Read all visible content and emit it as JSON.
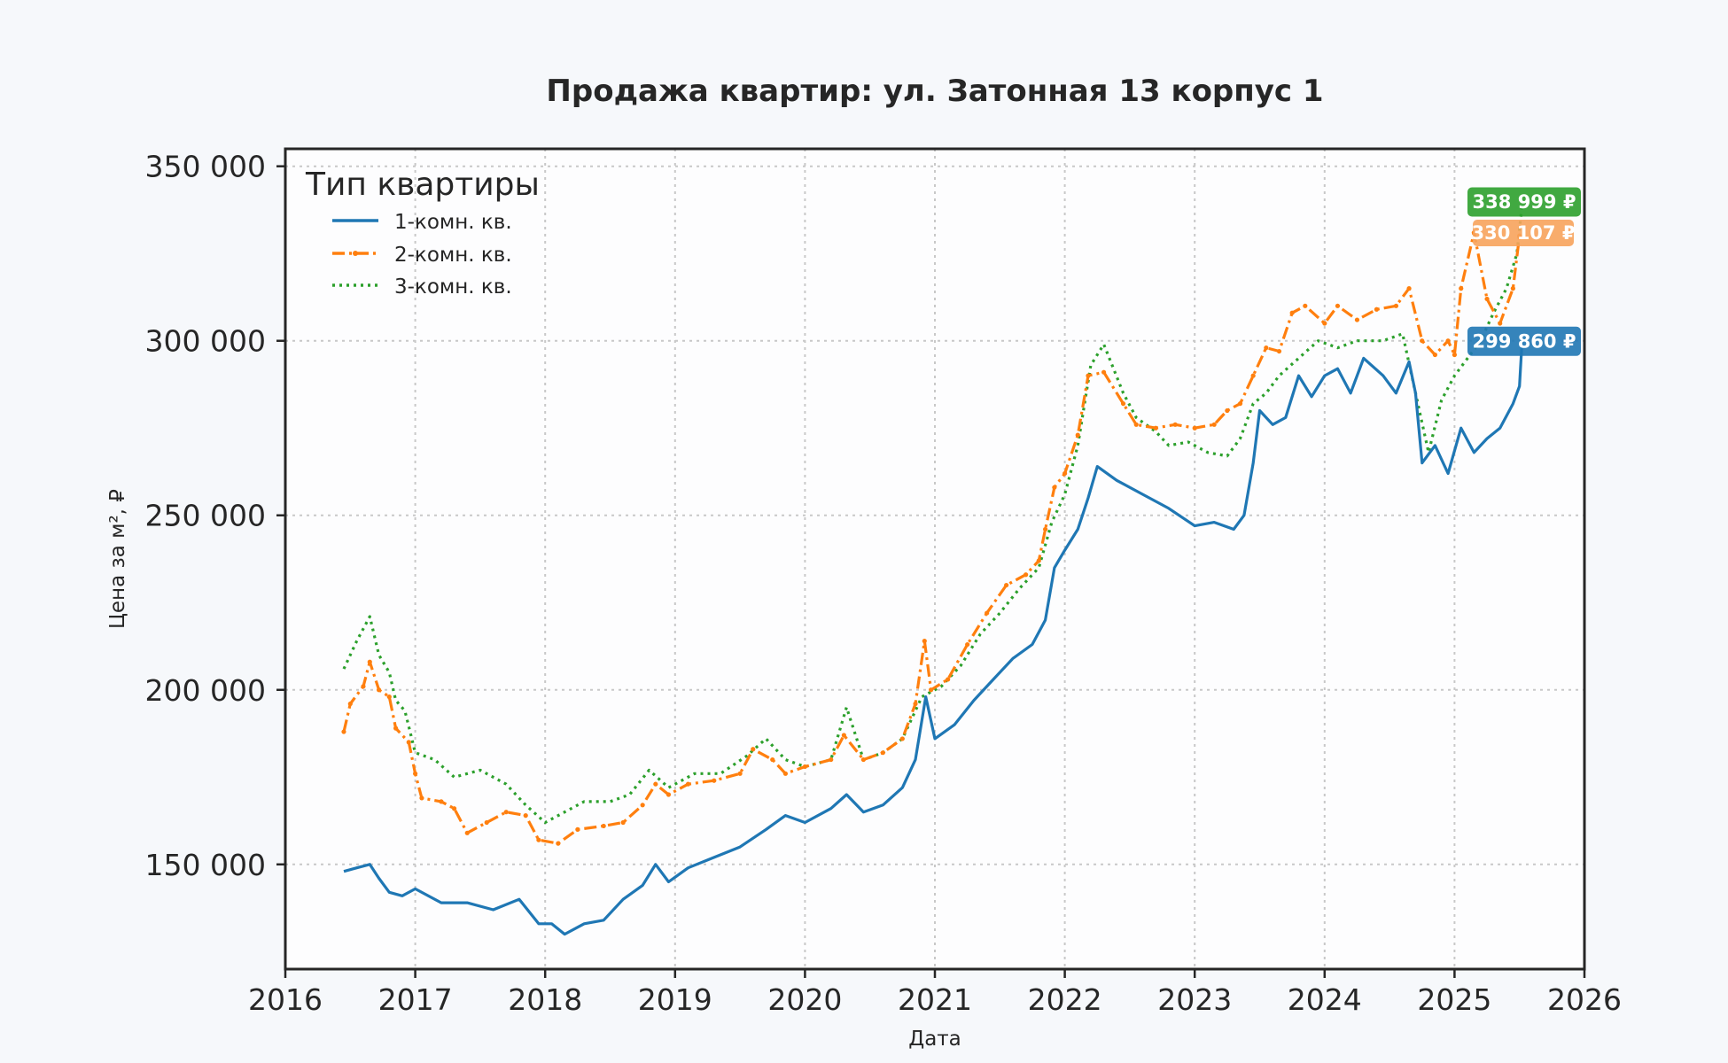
{
  "chart_data": {
    "type": "line",
    "title": "Продажа квартир: ул. Затонная 13 корпус 1",
    "xlabel": "Дата",
    "ylabel": "Цена за м², ₽",
    "xlim": [
      2016.0,
      2026.0
    ],
    "ylim": [
      120000,
      355000
    ],
    "x_ticks": [
      2016,
      2017,
      2018,
      2019,
      2020,
      2021,
      2022,
      2023,
      2024,
      2025,
      2026
    ],
    "x_tick_labels": [
      "2016",
      "2017",
      "2018",
      "2019",
      "2020",
      "2021",
      "2022",
      "2023",
      "2024",
      "2025",
      "2026"
    ],
    "y_ticks": [
      150000,
      200000,
      250000,
      300000,
      350000
    ],
    "y_tick_labels": [
      "150 000",
      "200 000",
      "250 000",
      "300 000",
      "350 000"
    ],
    "grid": true,
    "legend": {
      "title": "Тип квартиры",
      "placement": "top-left"
    },
    "series": [
      {
        "name": "1-комн. кв.",
        "color": "#1f77b4",
        "line_style": "solid",
        "end_label": "299 860 ₽",
        "points": [
          [
            2016.45,
            148000
          ],
          [
            2016.55,
            149000
          ],
          [
            2016.65,
            150000
          ],
          [
            2016.72,
            146000
          ],
          [
            2016.8,
            142000
          ],
          [
            2016.9,
            141000
          ],
          [
            2017.0,
            143000
          ],
          [
            2017.2,
            139000
          ],
          [
            2017.4,
            139000
          ],
          [
            2017.6,
            137000
          ],
          [
            2017.8,
            140000
          ],
          [
            2017.95,
            133000
          ],
          [
            2018.05,
            133000
          ],
          [
            2018.15,
            130000
          ],
          [
            2018.3,
            133000
          ],
          [
            2018.45,
            134000
          ],
          [
            2018.6,
            140000
          ],
          [
            2018.75,
            144000
          ],
          [
            2018.85,
            150000
          ],
          [
            2018.95,
            145000
          ],
          [
            2019.1,
            149000
          ],
          [
            2019.3,
            152000
          ],
          [
            2019.5,
            155000
          ],
          [
            2019.7,
            160000
          ],
          [
            2019.85,
            164000
          ],
          [
            2020.0,
            162000
          ],
          [
            2020.2,
            166000
          ],
          [
            2020.32,
            170000
          ],
          [
            2020.45,
            165000
          ],
          [
            2020.6,
            167000
          ],
          [
            2020.75,
            172000
          ],
          [
            2020.85,
            180000
          ],
          [
            2020.93,
            198000
          ],
          [
            2021.0,
            186000
          ],
          [
            2021.15,
            190000
          ],
          [
            2021.3,
            197000
          ],
          [
            2021.45,
            203000
          ],
          [
            2021.6,
            209000
          ],
          [
            2021.75,
            213000
          ],
          [
            2021.85,
            220000
          ],
          [
            2021.92,
            235000
          ],
          [
            2022.0,
            240000
          ],
          [
            2022.1,
            246000
          ],
          [
            2022.18,
            255000
          ],
          [
            2022.25,
            264000
          ],
          [
            2022.4,
            260000
          ],
          [
            2022.6,
            256000
          ],
          [
            2022.8,
            252000
          ],
          [
            2023.0,
            247000
          ],
          [
            2023.15,
            248000
          ],
          [
            2023.3,
            246000
          ],
          [
            2023.38,
            250000
          ],
          [
            2023.45,
            265000
          ],
          [
            2023.5,
            280000
          ],
          [
            2023.6,
            276000
          ],
          [
            2023.7,
            278000
          ],
          [
            2023.8,
            290000
          ],
          [
            2023.9,
            284000
          ],
          [
            2024.0,
            290000
          ],
          [
            2024.1,
            292000
          ],
          [
            2024.2,
            285000
          ],
          [
            2024.3,
            295000
          ],
          [
            2024.45,
            290000
          ],
          [
            2024.55,
            285000
          ],
          [
            2024.65,
            294000
          ],
          [
            2024.7,
            285000
          ],
          [
            2024.75,
            265000
          ],
          [
            2024.85,
            270000
          ],
          [
            2024.95,
            262000
          ],
          [
            2025.05,
            275000
          ],
          [
            2025.15,
            268000
          ],
          [
            2025.25,
            272000
          ],
          [
            2025.35,
            275000
          ],
          [
            2025.45,
            282000
          ],
          [
            2025.5,
            287000
          ],
          [
            2025.52,
            299860
          ]
        ]
      },
      {
        "name": "2-комн. кв.",
        "color": "#ff7f0e",
        "line_style": "dashdot",
        "end_label": "330 107 ₽",
        "points": [
          [
            2016.45,
            188000
          ],
          [
            2016.5,
            196000
          ],
          [
            2016.6,
            201000
          ],
          [
            2016.65,
            208000
          ],
          [
            2016.72,
            200000
          ],
          [
            2016.8,
            198000
          ],
          [
            2016.85,
            189000
          ],
          [
            2016.95,
            185000
          ],
          [
            2017.0,
            176000
          ],
          [
            2017.05,
            169000
          ],
          [
            2017.2,
            168000
          ],
          [
            2017.3,
            166000
          ],
          [
            2017.4,
            159000
          ],
          [
            2017.55,
            162000
          ],
          [
            2017.7,
            165000
          ],
          [
            2017.85,
            164000
          ],
          [
            2017.95,
            157000
          ],
          [
            2018.1,
            156000
          ],
          [
            2018.25,
            160000
          ],
          [
            2018.45,
            161000
          ],
          [
            2018.6,
            162000
          ],
          [
            2018.75,
            167000
          ],
          [
            2018.85,
            173000
          ],
          [
            2018.95,
            170000
          ],
          [
            2019.1,
            173000
          ],
          [
            2019.3,
            174000
          ],
          [
            2019.5,
            176000
          ],
          [
            2019.6,
            183000
          ],
          [
            2019.75,
            180000
          ],
          [
            2019.85,
            176000
          ],
          [
            2020.0,
            178000
          ],
          [
            2020.2,
            180000
          ],
          [
            2020.3,
            187000
          ],
          [
            2020.45,
            180000
          ],
          [
            2020.6,
            182000
          ],
          [
            2020.75,
            186000
          ],
          [
            2020.85,
            196000
          ],
          [
            2020.92,
            214000
          ],
          [
            2020.97,
            200000
          ],
          [
            2021.1,
            203000
          ],
          [
            2021.25,
            213000
          ],
          [
            2021.4,
            222000
          ],
          [
            2021.55,
            230000
          ],
          [
            2021.7,
            233000
          ],
          [
            2021.8,
            237000
          ],
          [
            2021.85,
            246000
          ],
          [
            2021.92,
            258000
          ],
          [
            2022.0,
            262000
          ],
          [
            2022.1,
            273000
          ],
          [
            2022.18,
            290000
          ],
          [
            2022.3,
            291000
          ],
          [
            2022.45,
            282000
          ],
          [
            2022.55,
            276000
          ],
          [
            2022.7,
            275000
          ],
          [
            2022.85,
            276000
          ],
          [
            2023.0,
            275000
          ],
          [
            2023.15,
            276000
          ],
          [
            2023.25,
            280000
          ],
          [
            2023.35,
            282000
          ],
          [
            2023.45,
            290000
          ],
          [
            2023.55,
            298000
          ],
          [
            2023.65,
            297000
          ],
          [
            2023.75,
            308000
          ],
          [
            2023.85,
            310000
          ],
          [
            2024.0,
            305000
          ],
          [
            2024.1,
            310000
          ],
          [
            2024.25,
            306000
          ],
          [
            2024.4,
            309000
          ],
          [
            2024.55,
            310000
          ],
          [
            2024.65,
            315000
          ],
          [
            2024.75,
            300000
          ],
          [
            2024.85,
            296000
          ],
          [
            2024.95,
            300000
          ],
          [
            2025.0,
            296000
          ],
          [
            2025.05,
            315000
          ],
          [
            2025.15,
            331000
          ],
          [
            2025.25,
            312000
          ],
          [
            2025.35,
            305000
          ],
          [
            2025.45,
            315000
          ],
          [
            2025.5,
            330107
          ]
        ]
      },
      {
        "name": "3-комн. кв.",
        "color": "#2ca02c",
        "line_style": "dotted",
        "end_label": "338 999 ₽",
        "points": [
          [
            2016.45,
            206000
          ],
          [
            2016.55,
            214000
          ],
          [
            2016.65,
            221000
          ],
          [
            2016.72,
            210000
          ],
          [
            2016.8,
            205000
          ],
          [
            2016.85,
            197000
          ],
          [
            2016.92,
            194000
          ],
          [
            2017.0,
            182000
          ],
          [
            2017.15,
            180000
          ],
          [
            2017.3,
            175000
          ],
          [
            2017.5,
            177000
          ],
          [
            2017.7,
            173000
          ],
          [
            2017.85,
            167000
          ],
          [
            2018.0,
            162000
          ],
          [
            2018.15,
            165000
          ],
          [
            2018.3,
            168000
          ],
          [
            2018.5,
            168000
          ],
          [
            2018.65,
            170000
          ],
          [
            2018.8,
            177000
          ],
          [
            2018.95,
            172000
          ],
          [
            2019.15,
            176000
          ],
          [
            2019.35,
            176000
          ],
          [
            2019.55,
            181000
          ],
          [
            2019.7,
            186000
          ],
          [
            2019.85,
            180000
          ],
          [
            2020.0,
            178000
          ],
          [
            2020.2,
            180000
          ],
          [
            2020.32,
            195000
          ],
          [
            2020.45,
            180000
          ],
          [
            2020.6,
            182000
          ],
          [
            2020.75,
            186000
          ],
          [
            2020.9,
            198000
          ],
          [
            2021.05,
            201000
          ],
          [
            2021.2,
            207000
          ],
          [
            2021.35,
            216000
          ],
          [
            2021.5,
            222000
          ],
          [
            2021.65,
            229000
          ],
          [
            2021.8,
            235000
          ],
          [
            2021.9,
            248000
          ],
          [
            2022.0,
            256000
          ],
          [
            2022.1,
            270000
          ],
          [
            2022.2,
            293000
          ],
          [
            2022.3,
            299000
          ],
          [
            2022.45,
            285000
          ],
          [
            2022.55,
            278000
          ],
          [
            2022.7,
            274000
          ],
          [
            2022.8,
            270000
          ],
          [
            2022.95,
            271000
          ],
          [
            2023.1,
            268000
          ],
          [
            2023.25,
            267000
          ],
          [
            2023.35,
            272000
          ],
          [
            2023.45,
            282000
          ],
          [
            2023.55,
            285000
          ],
          [
            2023.65,
            290000
          ],
          [
            2023.8,
            295000
          ],
          [
            2023.95,
            300000
          ],
          [
            2024.1,
            298000
          ],
          [
            2024.25,
            300000
          ],
          [
            2024.45,
            300000
          ],
          [
            2024.6,
            302000
          ],
          [
            2024.7,
            285000
          ],
          [
            2024.8,
            268000
          ],
          [
            2024.9,
            283000
          ],
          [
            2025.0,
            290000
          ],
          [
            2025.1,
            295000
          ],
          [
            2025.2,
            300000
          ],
          [
            2025.3,
            308000
          ],
          [
            2025.4,
            315000
          ],
          [
            2025.48,
            325000
          ],
          [
            2025.52,
            338999
          ]
        ]
      }
    ]
  }
}
